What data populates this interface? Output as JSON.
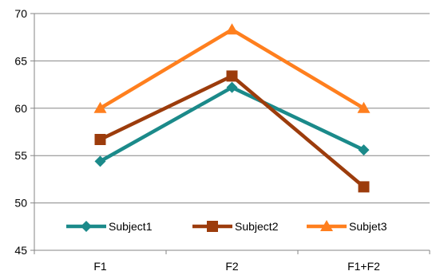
{
  "chart_data": {
    "type": "line",
    "categories": [
      "F1",
      "F2",
      "F1+F2"
    ],
    "ylim": [
      45,
      70
    ],
    "yticks": [
      45,
      50,
      55,
      60,
      65,
      70
    ],
    "grid": "horizontal",
    "legend_position": "bottom-inside",
    "series": [
      {
        "name": "Subject1",
        "values": [
          54.4,
          62.2,
          55.6
        ],
        "color": "#1B8A8A",
        "marker": "diamond"
      },
      {
        "name": "Subject2",
        "values": [
          56.7,
          63.4,
          51.7
        ],
        "color": "#9C3C0C",
        "marker": "square"
      },
      {
        "name": "Subjet3",
        "values": [
          60.0,
          68.3,
          60.0
        ],
        "color": "#FF7F1E",
        "marker": "triangle"
      }
    ]
  }
}
